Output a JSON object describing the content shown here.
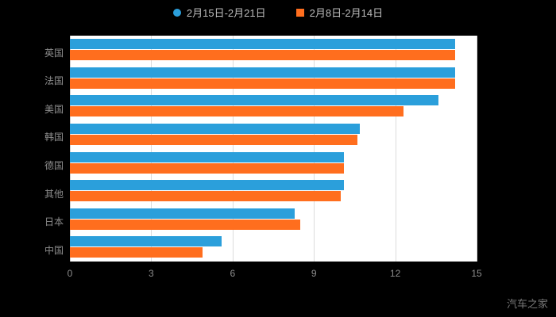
{
  "legend": [
    {
      "label": "2月15日-2月21日",
      "color": "#2B9FDB",
      "shape": "circle"
    },
    {
      "label": "2月8日-2月14日",
      "color": "#FF6E1E",
      "shape": "square"
    }
  ],
  "watermark": "汽车之家",
  "chart_data": {
    "type": "bar",
    "orientation": "horizontal",
    "title": "",
    "xlabel": "",
    "ylabel": "",
    "categories": [
      "英国",
      "法国",
      "美国",
      "韩国",
      "德国",
      "其他",
      "日本",
      "中国"
    ],
    "series": [
      {
        "name": "2月15日-2月21日",
        "color": "#2B9FDB",
        "values": [
          14.2,
          14.2,
          13.6,
          10.7,
          10.1,
          10.1,
          8.3,
          5.6
        ]
      },
      {
        "name": "2月8日-2月14日",
        "color": "#FF6E1E",
        "values": [
          14.2,
          14.2,
          12.3,
          10.6,
          10.1,
          10.0,
          8.5,
          4.9
        ]
      }
    ],
    "xlim": [
      0,
      15
    ],
    "xticks": [
      0,
      3,
      6,
      9,
      12,
      15
    ],
    "grid": true,
    "legend_position": "top",
    "plot_background": "#ffffff",
    "page_background": "#000000"
  }
}
